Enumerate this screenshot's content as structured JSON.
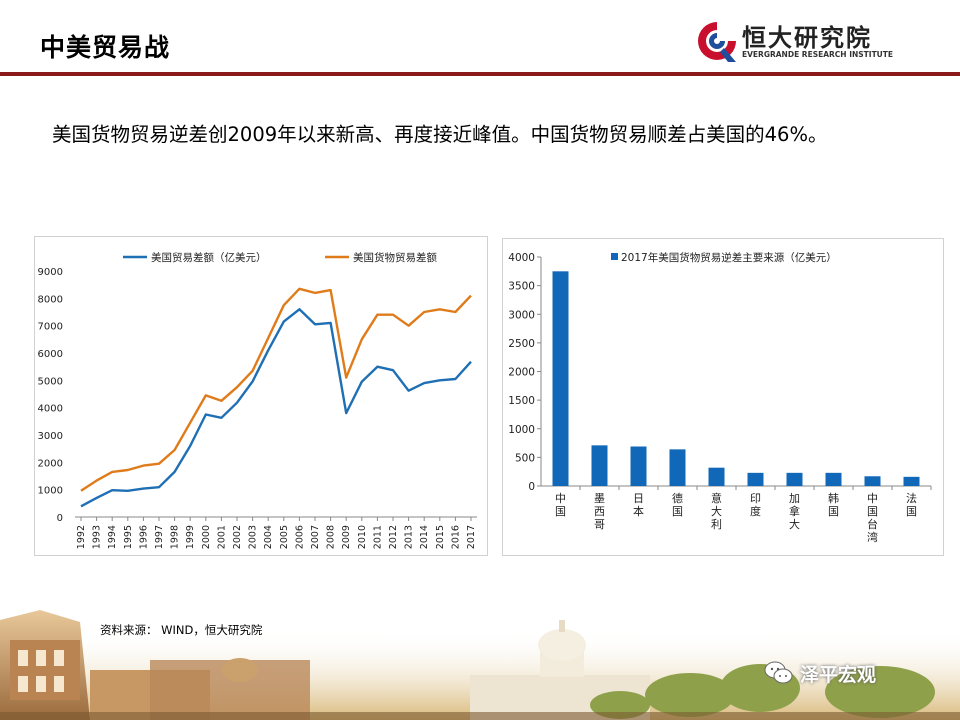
{
  "page": {
    "title": "中美贸易战",
    "subtitle": "美国货物贸易逆差创2009年以来新高、再度接近峰值。中国货物贸易顺差占美国的46%。",
    "source": "资料来源： WIND，恒大研究院",
    "logo_name": "恒大研究院",
    "logo_en": "EVERGRANDE RESEARCH INSTITUTE",
    "watermark": "泽平宏观",
    "colors": {
      "header_rule": "#8b1a1a",
      "logo_red": "#c8102e",
      "logo_blue": "#1f4e9c"
    }
  },
  "chart_data": [
    {
      "type": "line",
      "x": [
        "1992",
        "1993",
        "1994",
        "1995",
        "1996",
        "1997",
        "1998",
        "1999",
        "2000",
        "2001",
        "2002",
        "2003",
        "2004",
        "2005",
        "2006",
        "2007",
        "2008",
        "2009",
        "2010",
        "2011",
        "2012",
        "2013",
        "2014",
        "2015",
        "2016",
        "2017"
      ],
      "series": [
        {
          "name": "美国贸易差额（亿美元）",
          "color": "#1f6fb4",
          "values": [
            390,
            700,
            980,
            960,
            1040,
            1090,
            1650,
            2600,
            3750,
            3630,
            4180,
            4960,
            6100,
            7150,
            7600,
            7050,
            7100,
            3800,
            4950,
            5500,
            5370,
            4620,
            4900,
            5000,
            5050,
            5680
          ]
        },
        {
          "name": "美国货物贸易差额",
          "color": "#e07b1a",
          "values": [
            960,
            1330,
            1650,
            1720,
            1880,
            1950,
            2450,
            3450,
            4450,
            4250,
            4750,
            5350,
            6550,
            7750,
            8350,
            8200,
            8300,
            5100,
            6500,
            7400,
            7400,
            7000,
            7500,
            7600,
            7500,
            8100
          ]
        }
      ],
      "ylim": [
        0,
        9000
      ],
      "yticks": [
        "0",
        "1000",
        "2000",
        "3000",
        "4000",
        "5000",
        "6000",
        "7000",
        "8000",
        "9000"
      ],
      "legend": "top",
      "grid": false
    },
    {
      "type": "bar",
      "title": "2017年美国货物贸易逆差主要来源（亿美元）",
      "categories": [
        "中国",
        "墨西哥",
        "日本",
        "德国",
        "意大利",
        "印度",
        "加拿大",
        "韩国",
        "中国台湾",
        "法国"
      ],
      "values": [
        3750,
        710,
        690,
        640,
        320,
        230,
        230,
        230,
        170,
        160
      ],
      "color": "#1268b8",
      "ylim": [
        0,
        4000
      ],
      "yticks": [
        "0",
        "500",
        "1000",
        "1500",
        "2000",
        "2500",
        "3000",
        "3500",
        "4000"
      ],
      "legend": "top",
      "grid": false
    }
  ]
}
